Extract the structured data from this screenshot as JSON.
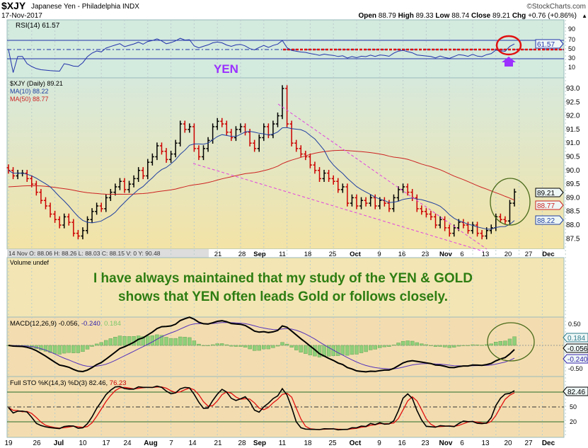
{
  "header": {
    "symbol": "$XJY",
    "name": "Japanese Yen - Philadelphia INDX",
    "date": "17-Nov-2017",
    "credit": "©StockCharts.com",
    "open_l": "Open",
    "open": "88.79",
    "high_l": "High",
    "high": "89.33",
    "low_l": "Low",
    "low": "88.74",
    "close_l": "Close",
    "close": "89.21",
    "chg_l": "Chg",
    "chg": "+0.76 (+0.86%)"
  },
  "rsi": {
    "label": "RSI(14) 61.57",
    "value_tag": "61.57",
    "ticks": [
      "90",
      "70",
      "50",
      "30",
      "10"
    ],
    "annotation": "YEN"
  },
  "price": {
    "label": "$XJY (Daily) 89.21",
    "ma10": "MA(10) 88.22",
    "ma50": "MA(50) 88.77",
    "tags": {
      "close": "89.21",
      "ma50": "88.77",
      "ma10": "88.22"
    },
    "ticks": [
      "93.0",
      "92.5",
      "92.0",
      "91.5",
      "91.0",
      "90.5",
      "90.0",
      "89.5",
      "89.0",
      "88.5",
      "88.0",
      "87.5"
    ]
  },
  "info_strip": "14 Nov O: 88.06  H: 88.26  L: 88.03  C: 88.15  V: 0  Y: 90.48",
  "mid_dates": [
    "21",
    "28",
    "Sep",
    "11",
    "18",
    "25",
    "Oct",
    "9",
    "16",
    "23",
    "Nov",
    "6",
    "13",
    "20",
    "27",
    "Dec"
  ],
  "volume": {
    "label": "Volume undef",
    "note_line1": "I have always maintained that my study of the YEN & GOLD",
    "note_line2": "shows that YEN often leads Gold or follows closely."
  },
  "macd": {
    "label": "MACD(12,26,9) -0.056, ",
    "signal": "-0.240",
    "hist": ", 0.184",
    "ticks": [
      "0.50",
      "-0.50"
    ],
    "tags": [
      "0.184",
      "-0.056",
      "-0.240"
    ]
  },
  "sto": {
    "label": "Full STO %K(14,3) %D(3) 82.46, ",
    "d": "76.23",
    "ticks": [
      "50",
      "20"
    ],
    "tag": "82.46"
  },
  "bottom_dates": [
    "19",
    "26",
    "Jul",
    "10",
    "17",
    "24",
    "Aug",
    "7",
    "14",
    "21",
    "28",
    "Sep",
    "11",
    "18",
    "25",
    "Oct",
    "9",
    "16",
    "23",
    "Nov",
    "6",
    "13",
    "20",
    "27",
    "Dec"
  ],
  "colors": {
    "price_up": "#000000",
    "price_down": "#cc0000",
    "ma10": "#1f3fa0",
    "ma50": "#cc2222",
    "trend": "#e040e0",
    "note": "#2e7d12",
    "annot": "#9b30ff"
  },
  "chart_data": {
    "type": "ohlc",
    "title": "$XJY Japanese Yen - Philadelphia INDX",
    "start": "2017-06-19",
    "end": "2017-11-17",
    "ylim": [
      87.3,
      93.4
    ],
    "close": [
      90.0,
      89.8,
      89.9,
      89.9,
      89.7,
      89.5,
      89.2,
      88.9,
      88.7,
      88.4,
      88.2,
      88.0,
      88.3,
      88.1,
      87.7,
      87.6,
      87.8,
      88.2,
      88.5,
      88.7,
      88.6,
      89.0,
      89.2,
      89.4,
      89.6,
      89.3,
      89.5,
      89.7,
      90.0,
      89.8,
      90.3,
      90.5,
      90.9,
      90.7,
      90.4,
      90.6,
      91.0,
      91.7,
      91.5,
      91.6,
      90.8,
      90.5,
      90.8,
      91.1,
      91.6,
      91.8,
      91.7,
      91.4,
      91.2,
      91.5,
      91.6,
      91.4,
      91.0,
      90.8,
      91.2,
      91.6,
      91.3,
      91.7,
      92.0,
      93.0,
      91.7,
      91.0,
      90.8,
      90.6,
      90.5,
      90.2,
      90.0,
      89.7,
      89.9,
      89.7,
      89.6,
      89.3,
      89.4,
      88.8,
      89.0,
      88.7,
      88.9,
      88.8,
      89.0,
      88.7,
      88.9,
      88.8,
      88.6,
      89.0,
      89.3,
      89.4,
      89.2,
      89.0,
      88.6,
      88.5,
      88.4,
      88.3,
      88.0,
      88.2,
      87.9,
      87.7,
      87.9,
      88.1,
      88.0,
      87.8,
      88.0,
      87.7,
      87.6,
      87.8,
      87.9,
      88.3,
      88.2,
      88.15,
      88.8,
      89.21
    ]
  }
}
